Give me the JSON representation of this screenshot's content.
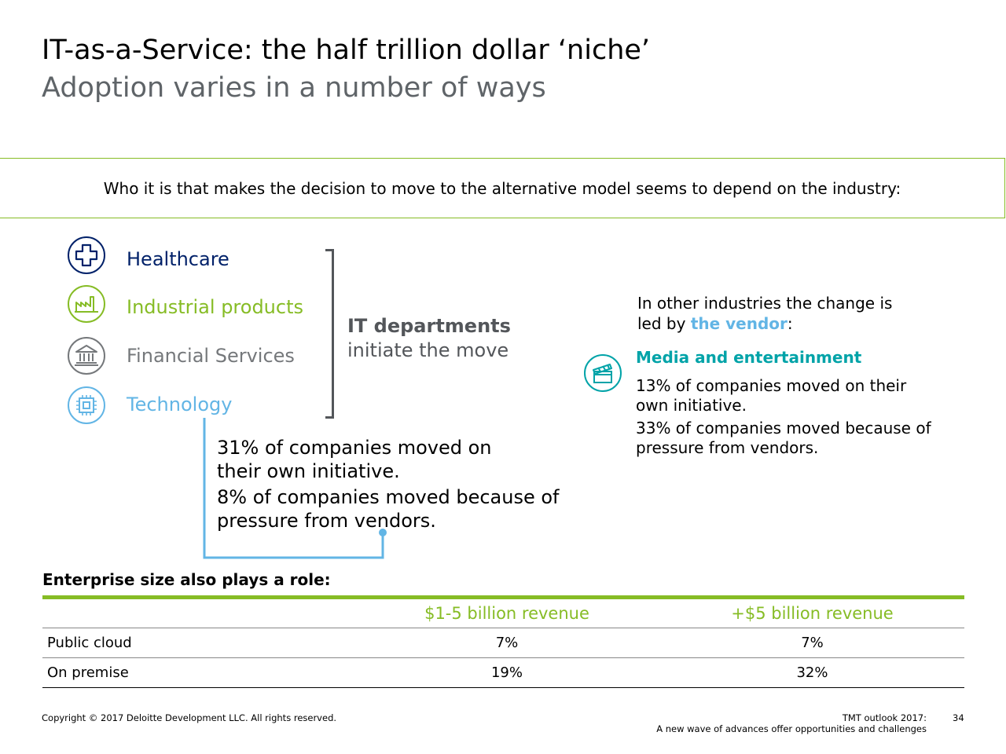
{
  "header": {
    "title": "IT-as-a-Service: the half trillion dollar ‘niche’",
    "subtitle": "Adoption varies in a number of ways"
  },
  "callout": {
    "text": "Who it is that makes the decision to move to the alternative model seems to depend on the industry:"
  },
  "industries": [
    {
      "label": "Healthcare",
      "icon": "medical-cross-icon",
      "color": "#012169"
    },
    {
      "label": "Industrial products",
      "icon": "factory-icon",
      "color": "#86bc25"
    },
    {
      "label": "Financial Services",
      "icon": "bank-icon",
      "color": "#75787b"
    },
    {
      "label": "Technology",
      "icon": "chip-icon",
      "color": "#62b5e5"
    }
  ],
  "it_departments": {
    "bold": "IT departments",
    "rest": "initiate the move"
  },
  "it_stats": [
    "31% of companies moved on their own initiative.",
    "8% of companies moved because of pressure from vendors."
  ],
  "vendor_led": {
    "intro_prefix": "In other industries the change is led by ",
    "intro_highlight": "the vendor",
    "intro_suffix": ":",
    "industry": "Media and entertainment",
    "icon": "clapperboard-icon",
    "color": "#00a3a8",
    "stats": [
      "13% of companies moved on their own initiative.",
      "33% of companies moved because of pressure from vendors."
    ]
  },
  "size_table": {
    "heading": "Enterprise size also plays a role:",
    "columns": [
      "",
      "$1-5 billion revenue",
      "+$5 billion revenue"
    ],
    "rows": [
      {
        "label": "Public cloud",
        "values": [
          "7%",
          "7%"
        ]
      },
      {
        "label": "On premise",
        "values": [
          "19%",
          "32%"
        ]
      }
    ]
  },
  "footer": {
    "copyright": "Copyright © 2017 Deloitte Development LLC. All rights reserved.",
    "report_line1": "TMT outlook 2017:",
    "report_line2": "A new wave of advances offer opportunities and challenges",
    "page_number": "34"
  }
}
